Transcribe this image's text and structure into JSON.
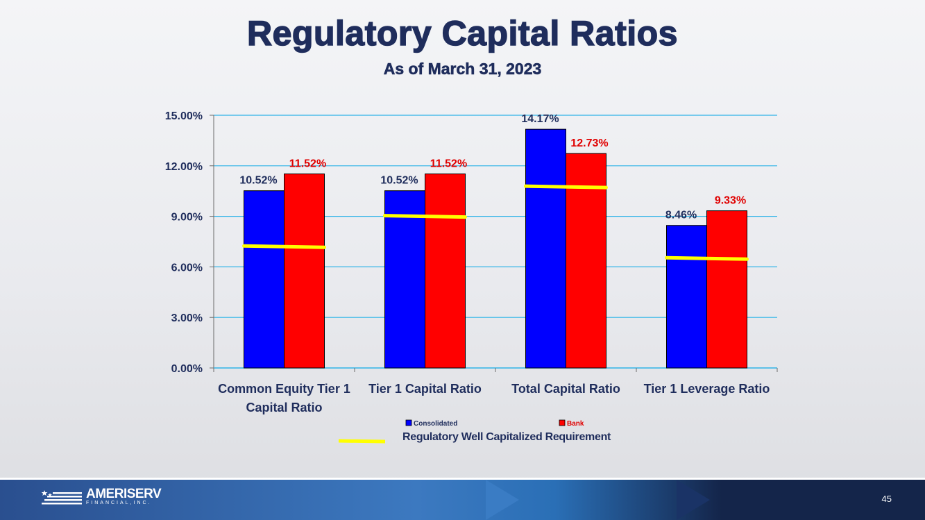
{
  "slide": {
    "title": "Regulatory Capital Ratios",
    "subtitle": "As of March 31, 2023",
    "page_number": "45"
  },
  "footer": {
    "logo_name": "AMERISERV",
    "logo_sub": "FINANCIAL,INC."
  },
  "colors": {
    "consolidated": "#0000ff",
    "bank": "#ff0000",
    "requirement": "#ffff00",
    "axis_text": "#1f2d5c",
    "bank_label": "#e00000",
    "grid": "#2fb4e8"
  },
  "chart_data": {
    "type": "bar",
    "categories": [
      [
        "Common Equity Tier 1",
        "Capital Ratio"
      ],
      [
        "Tier 1 Capital Ratio"
      ],
      [
        "Total Capital Ratio"
      ],
      [
        "Tier 1 Leverage Ratio"
      ]
    ],
    "series": [
      {
        "name": "Consolidated",
        "values": [
          10.52,
          10.52,
          14.17,
          8.46
        ],
        "labels": [
          "10.52%",
          "10.52%",
          "14.17%",
          "8.46%"
        ]
      },
      {
        "name": "Bank",
        "values": [
          11.52,
          11.52,
          12.73,
          9.33
        ],
        "labels": [
          "11.52%",
          "11.52%",
          "12.73%",
          "9.33%"
        ]
      }
    ],
    "requirement": {
      "name": "Regulatory Well Capitalized Requirement",
      "values": [
        7.2,
        9.0,
        10.75,
        6.5
      ]
    },
    "ylim": [
      0,
      15
    ],
    "yticks": [
      0,
      3,
      6,
      9,
      12,
      15
    ],
    "ytick_labels": [
      "0.00%",
      "3.00%",
      "6.00%",
      "9.00%",
      "12.00%",
      "15.00%"
    ],
    "legend": [
      "Consolidated",
      "Bank",
      "Regulatory Well Capitalized Requirement"
    ],
    "grid": true
  }
}
